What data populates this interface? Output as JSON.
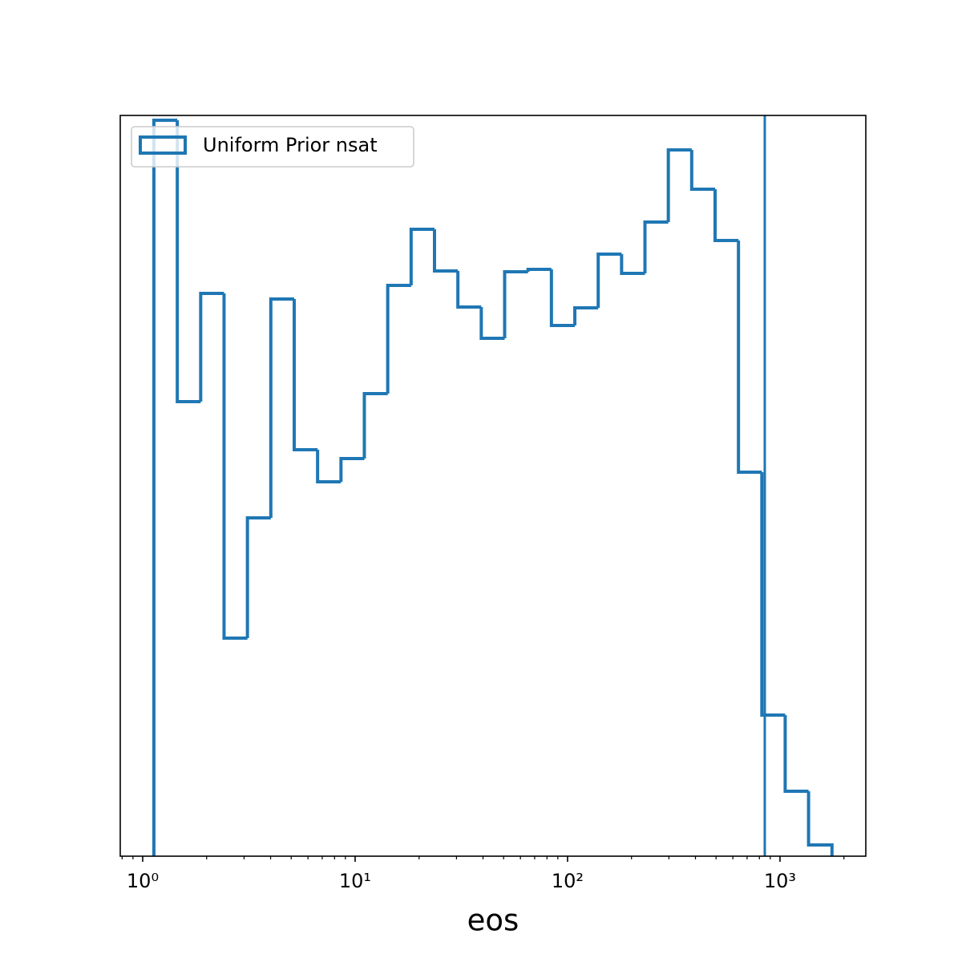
{
  "chart_data": {
    "type": "histogram",
    "xlabel": "eos",
    "log_x": true,
    "color": "#1f77b4",
    "bins": [
      1.129,
      1.455,
      1.875,
      2.415,
      3.112,
      4.01,
      5.167,
      6.657,
      8.579,
      11.05,
      14.24,
      18.35,
      23.64,
      30.46,
      39.25,
      50.57,
      65.15,
      83.95,
      108.2,
      139.4,
      179.6,
      231.4,
      298.1,
      384.1,
      494.9,
      637.6,
      821.5,
      1058,
      1363,
      1757
    ],
    "values": [
      918,
      567,
      702,
      272,
      422,
      695,
      507,
      467,
      496,
      577,
      712,
      782,
      730,
      685,
      646,
      729,
      732,
      662,
      684,
      751,
      727,
      791,
      881,
      832,
      768,
      479,
      176,
      81,
      14
    ],
    "ylim": [
      0,
      924
    ],
    "xlim": [
      0.784,
      2535
    ],
    "xticks": [
      {
        "value": 1,
        "label": "10⁰"
      },
      {
        "value": 10,
        "label": "10¹"
      },
      {
        "value": 100,
        "label": "10²"
      },
      {
        "value": 1000,
        "label": "10³"
      }
    ],
    "xminorticks": [
      0.8,
      0.9,
      2,
      3,
      4,
      5,
      6,
      7,
      8,
      9,
      20,
      30,
      40,
      50,
      60,
      70,
      80,
      90,
      200,
      300,
      400,
      500,
      600,
      700,
      800,
      900,
      2000
    ],
    "vline": 848,
    "legend": {
      "loc": "upper left",
      "label": "Uniform Prior nsat"
    }
  }
}
